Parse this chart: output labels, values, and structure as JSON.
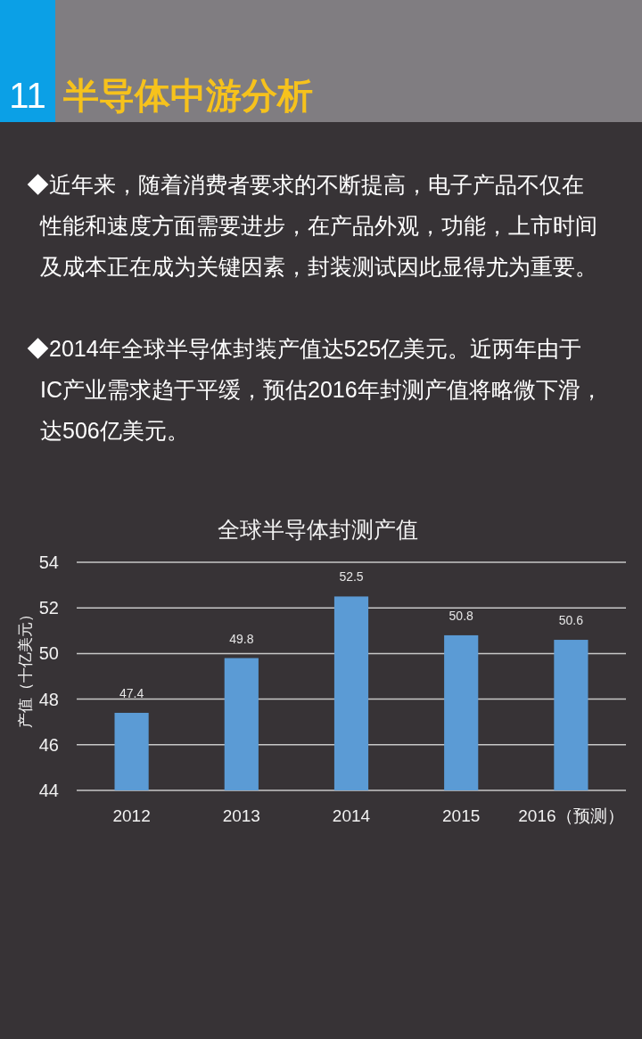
{
  "chart_data": {
    "type": "bar",
    "title": "全球半导体封测产值",
    "ylabel": "产值（十亿美元）",
    "categories": [
      "2012",
      "2013",
      "2014",
      "2015",
      "2016（预测）"
    ],
    "values": [
      47.4,
      49.8,
      52.5,
      50.8,
      50.6
    ],
    "color": "#5b9bd5",
    "ylim": [
      44,
      54
    ],
    "yticks": [
      44,
      46,
      48,
      50,
      52,
      54
    ],
    "grid": "y",
    "data_labels": true,
    "annotations": [
      "11",
      "半导体中游分析",
      "◆近年来，随着消费者要求的不断提高，电子产品不仅在性能和速度方面需要进步，在产品外观，功能，上市时间及成本正在成为关键因素，封装测试因此显得尤为重要。",
      "◆2014年全球半导体封装产值达525亿美元。近两年由于IC产业需求趋于平缓，预估2016年封测产值将略微下滑，达506亿美元。"
    ]
  }
}
